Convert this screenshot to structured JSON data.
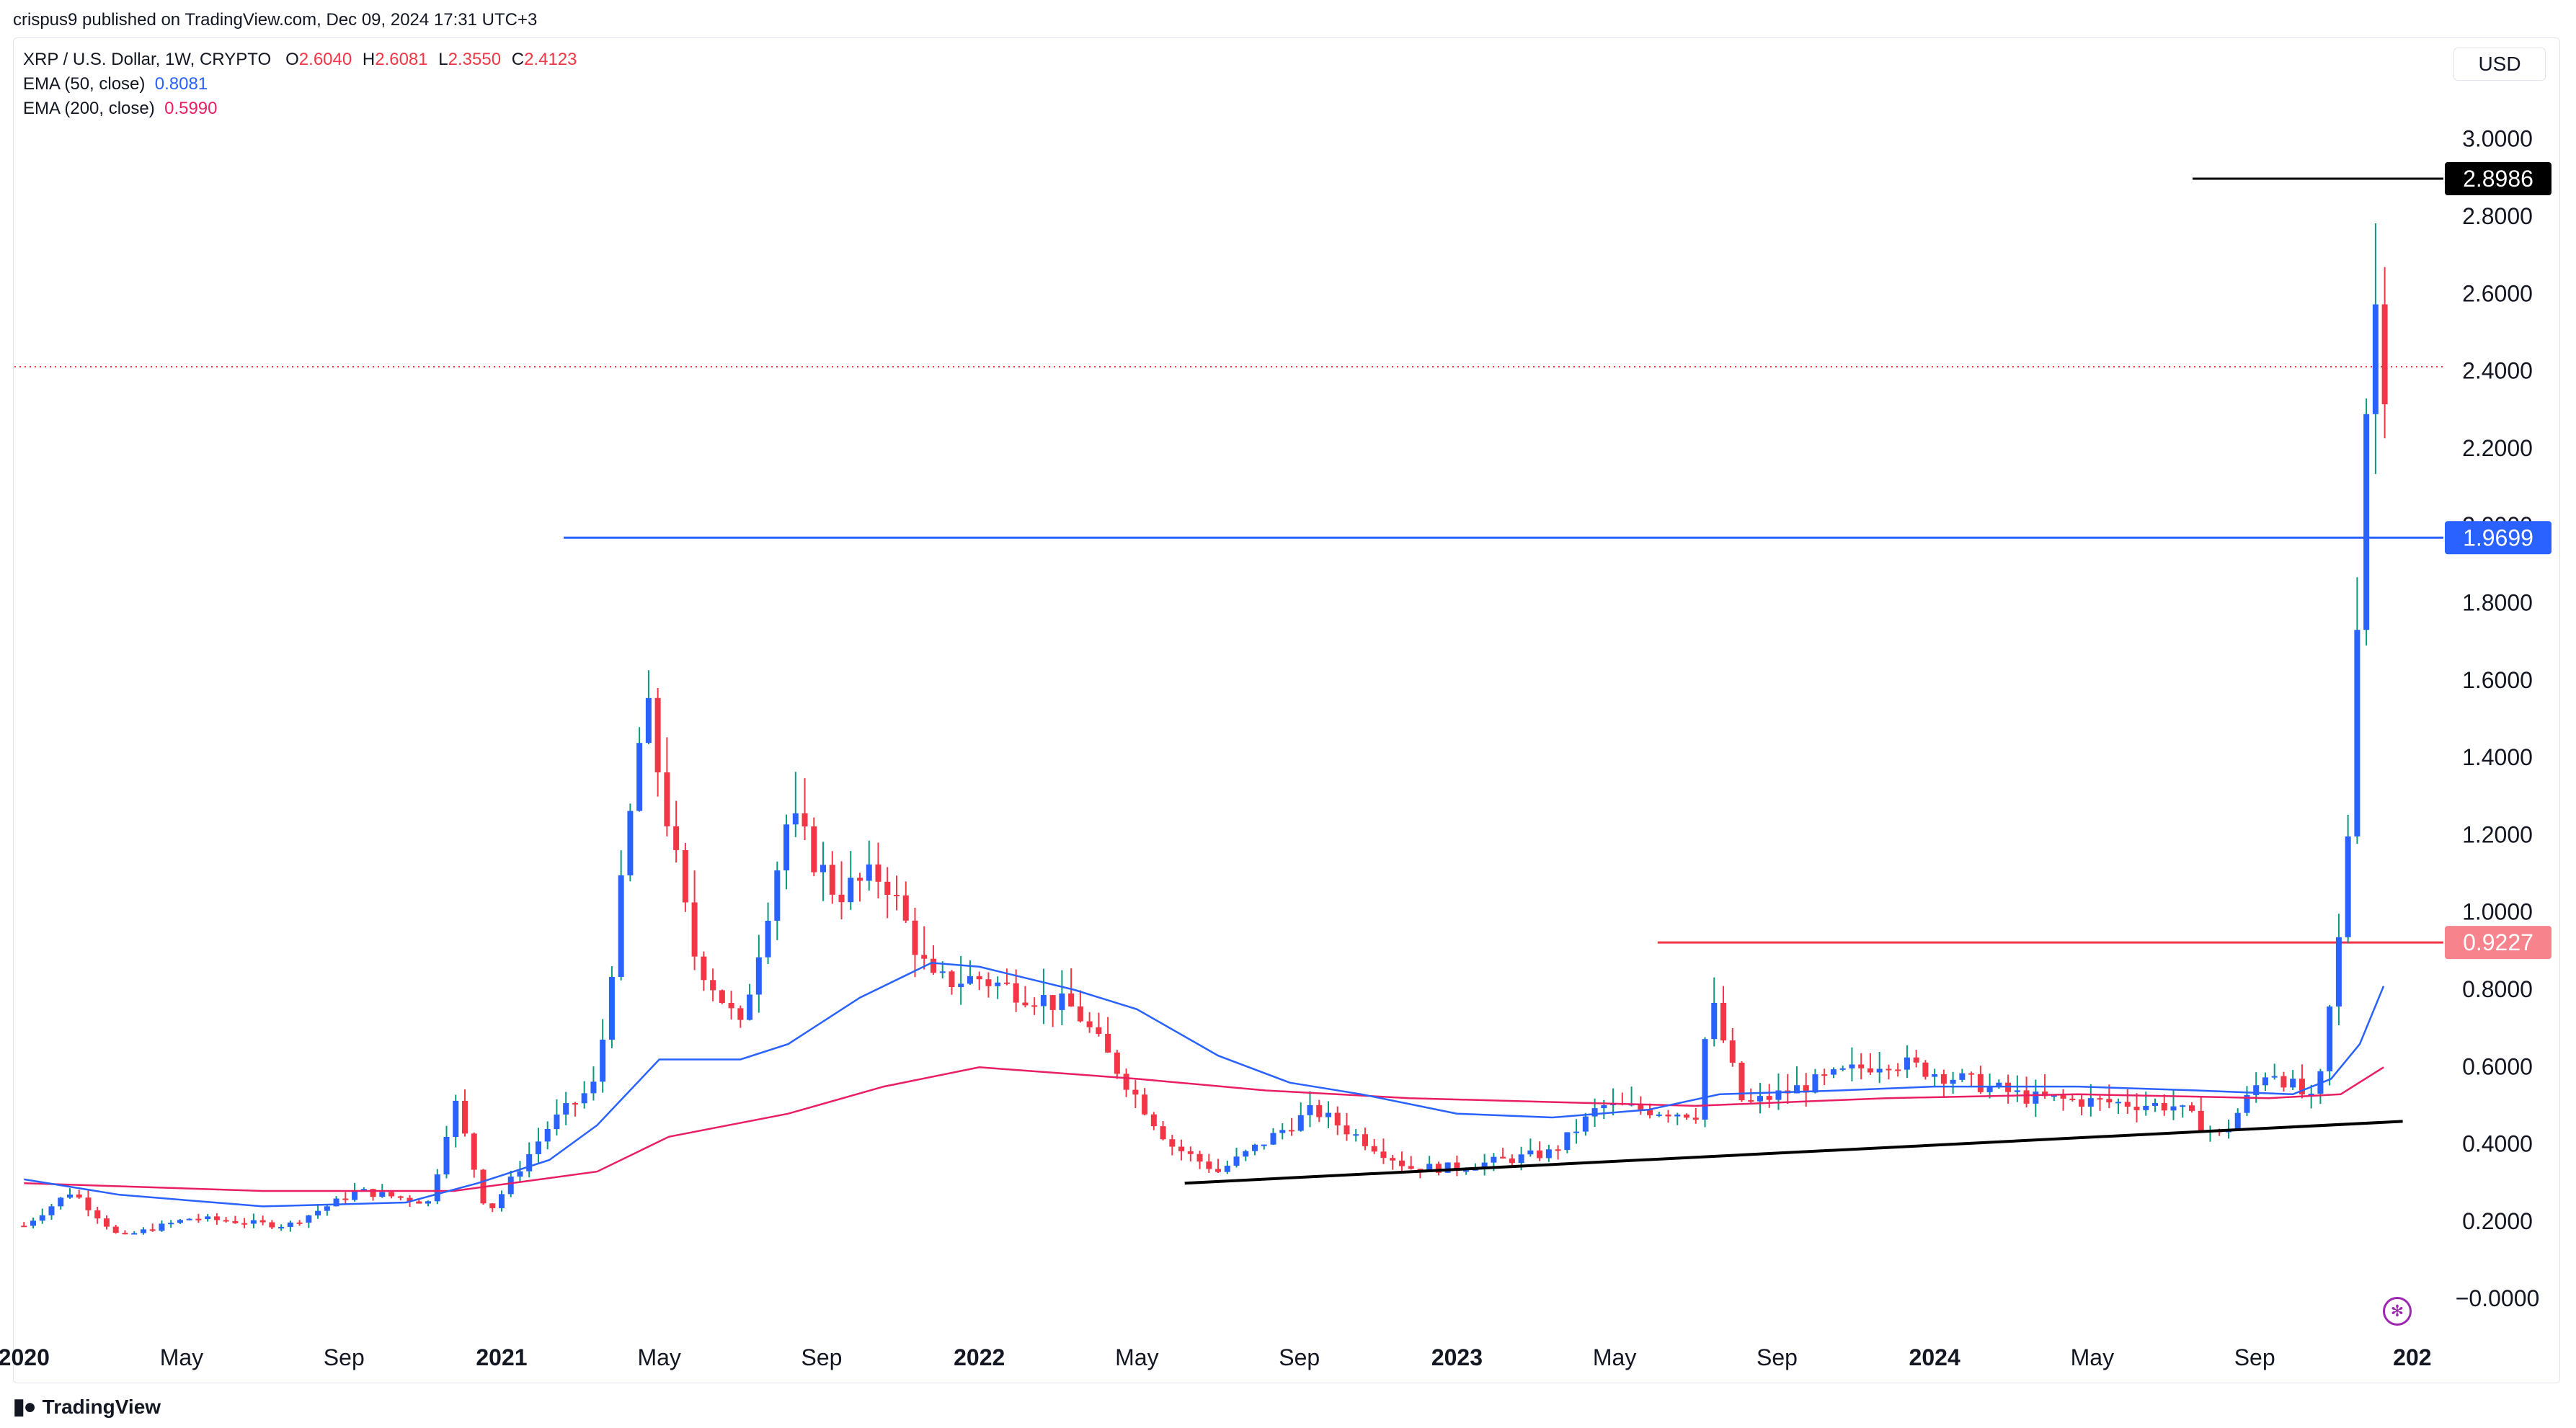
{
  "header": {
    "published": "crispus9 published on TradingView.com, Dec 09, 2024 17:31 UTC+3"
  },
  "legend": {
    "symbol": "XRP / U.S. Dollar, 1W, CRYPTO",
    "ohlc": {
      "o_label": "O",
      "o": "2.6040",
      "h_label": "H",
      "h": "2.6081",
      "l_label": "L",
      "l": "2.3550",
      "c_label": "C",
      "c": "2.4123"
    },
    "ema50_label": "EMA (50, close)",
    "ema50_value": "0.8081",
    "ema200_label": "EMA (200, close)",
    "ema200_value": "0.5990"
  },
  "currency": "USD",
  "footer": {
    "brand": "TradingView"
  },
  "colors": {
    "up": "#2962ff",
    "down": "#f23645",
    "ema50": "#2962ff",
    "ema200": "#e91e63",
    "support": "#000000"
  },
  "chart_data": {
    "type": "candlestick",
    "y_ticks": [
      "3.0000",
      "2.8000",
      "2.6000",
      "2.4000",
      "2.2000",
      "2.0000",
      "1.8000",
      "1.6000",
      "1.4000",
      "1.2000",
      "1.0000",
      "0.8000",
      "0.6000",
      "0.4000",
      "0.2000",
      "−0.0000"
    ],
    "ylim": [
      -0.05,
      3.1
    ],
    "x_ticks": [
      {
        "label": "2020",
        "bold": true,
        "t": 2020.0
      },
      {
        "label": "May",
        "bold": false,
        "t": 2020.33
      },
      {
        "label": "Sep",
        "bold": false,
        "t": 2020.67
      },
      {
        "label": "2021",
        "bold": true,
        "t": 2021.0
      },
      {
        "label": "May",
        "bold": false,
        "t": 2021.33
      },
      {
        "label": "Sep",
        "bold": false,
        "t": 2021.67
      },
      {
        "label": "2022",
        "bold": true,
        "t": 2022.0
      },
      {
        "label": "May",
        "bold": false,
        "t": 2022.33
      },
      {
        "label": "Sep",
        "bold": false,
        "t": 2022.67
      },
      {
        "label": "2023",
        "bold": true,
        "t": 2023.0
      },
      {
        "label": "May",
        "bold": false,
        "t": 2023.33
      },
      {
        "label": "Sep",
        "bold": false,
        "t": 2023.67
      },
      {
        "label": "2024",
        "bold": true,
        "t": 2024.0
      },
      {
        "label": "May",
        "bold": false,
        "t": 2024.33
      },
      {
        "label": "Sep",
        "bold": false,
        "t": 2024.67
      },
      {
        "label": "202",
        "bold": true,
        "t": 2025.0
      }
    ],
    "price_labels": [
      {
        "value": 2.8986,
        "text": "2.8986",
        "style": "dark"
      },
      {
        "value": 1.9699,
        "text": "1.9699",
        "style": "blue"
      },
      {
        "value": 0.9227,
        "text": "0.9227",
        "style": "red"
      }
    ],
    "horizontal_levels": [
      {
        "value": 2.8986,
        "from": 2024.54,
        "color": "#000000"
      },
      {
        "value": 1.9699,
        "from": 2021.13,
        "color": "#2962ff"
      },
      {
        "value": 0.9227,
        "from": 2023.42,
        "color": "#f23645"
      },
      {
        "value": 2.4123,
        "from": 2019.98,
        "color": "#f23645",
        "dotted": true
      }
    ],
    "support_line": [
      {
        "t": 2022.43,
        "v": 0.3
      },
      {
        "t": 2024.98,
        "v": 0.46
      }
    ],
    "ema50": [
      [
        2020.0,
        0.31
      ],
      [
        2020.2,
        0.27
      ],
      [
        2020.5,
        0.24
      ],
      [
        2020.8,
        0.25
      ],
      [
        2020.95,
        0.3
      ],
      [
        2021.1,
        0.36
      ],
      [
        2021.2,
        0.45
      ],
      [
        2021.33,
        0.62
      ],
      [
        2021.5,
        0.62
      ],
      [
        2021.6,
        0.66
      ],
      [
        2021.75,
        0.78
      ],
      [
        2021.9,
        0.87
      ],
      [
        2022.0,
        0.86
      ],
      [
        2022.2,
        0.8
      ],
      [
        2022.33,
        0.75
      ],
      [
        2022.5,
        0.63
      ],
      [
        2022.65,
        0.56
      ],
      [
        2022.8,
        0.53
      ],
      [
        2023.0,
        0.48
      ],
      [
        2023.2,
        0.47
      ],
      [
        2023.4,
        0.49
      ],
      [
        2023.55,
        0.53
      ],
      [
        2023.8,
        0.54
      ],
      [
        2024.0,
        0.55
      ],
      [
        2024.3,
        0.55
      ],
      [
        2024.55,
        0.54
      ],
      [
        2024.75,
        0.53
      ],
      [
        2024.83,
        0.57
      ],
      [
        2024.89,
        0.66
      ],
      [
        2024.94,
        0.81
      ]
    ],
    "ema200": [
      [
        2020.0,
        0.3
      ],
      [
        2020.5,
        0.28
      ],
      [
        2020.9,
        0.28
      ],
      [
        2021.2,
        0.33
      ],
      [
        2021.35,
        0.42
      ],
      [
        2021.6,
        0.48
      ],
      [
        2021.8,
        0.55
      ],
      [
        2022.0,
        0.6
      ],
      [
        2022.33,
        0.57
      ],
      [
        2022.6,
        0.54
      ],
      [
        2022.9,
        0.52
      ],
      [
        2023.2,
        0.51
      ],
      [
        2023.5,
        0.5
      ],
      [
        2023.9,
        0.52
      ],
      [
        2024.3,
        0.53
      ],
      [
        2024.7,
        0.52
      ],
      [
        2024.85,
        0.53
      ],
      [
        2024.94,
        0.6
      ]
    ],
    "weekly_close_approx": [
      [
        2020.0,
        0.19
      ],
      [
        2020.1,
        0.28
      ],
      [
        2020.2,
        0.16
      ],
      [
        2020.35,
        0.21
      ],
      [
        2020.55,
        0.19
      ],
      [
        2020.7,
        0.28
      ],
      [
        2020.85,
        0.25
      ],
      [
        2020.9,
        0.52
      ],
      [
        2020.97,
        0.22
      ],
      [
        2021.1,
        0.45
      ],
      [
        2021.2,
        0.56
      ],
      [
        2021.3,
        1.55
      ],
      [
        2021.4,
        0.9
      ],
      [
        2021.5,
        0.7
      ],
      [
        2021.6,
        1.25
      ],
      [
        2021.7,
        1.05
      ],
      [
        2021.8,
        1.1
      ],
      [
        2021.9,
        0.82
      ],
      [
        2022.0,
        0.83
      ],
      [
        2022.2,
        0.75
      ],
      [
        2022.4,
        0.4
      ],
      [
        2022.5,
        0.33
      ],
      [
        2022.7,
        0.49
      ],
      [
        2022.9,
        0.34
      ],
      [
        2023.0,
        0.34
      ],
      [
        2023.2,
        0.38
      ],
      [
        2023.3,
        0.5
      ],
      [
        2023.5,
        0.48
      ],
      [
        2023.53,
        0.78
      ],
      [
        2023.6,
        0.5
      ],
      [
        2023.9,
        0.62
      ],
      [
        2024.2,
        0.52
      ],
      [
        2024.5,
        0.5
      ],
      [
        2024.6,
        0.42
      ],
      [
        2024.7,
        0.6
      ],
      [
        2024.8,
        0.5
      ],
      [
        2024.86,
        1.05
      ],
      [
        2024.9,
        2.25
      ],
      [
        2024.92,
        2.6
      ],
      [
        2024.94,
        2.41
      ]
    ]
  }
}
